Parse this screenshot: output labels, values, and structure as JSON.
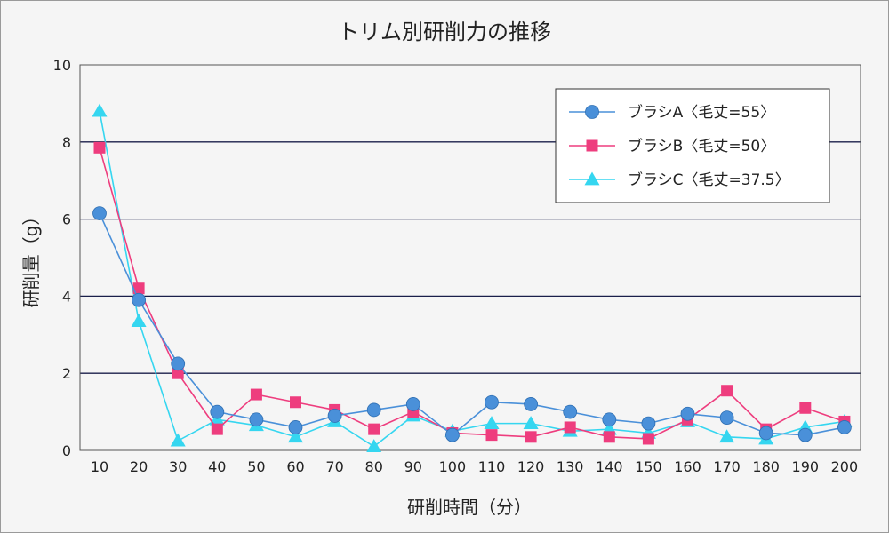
{
  "chart_data": {
    "type": "line",
    "title": "トリム別研削力の推移",
    "xlabel": "研削時間（分）",
    "ylabel": "研削量（g）",
    "ylim": [
      0,
      10
    ],
    "yticks": [
      "0",
      "2",
      "4",
      "6",
      "8",
      "10"
    ],
    "grid": true,
    "legend_position": "top-right",
    "categories": [
      "10",
      "20",
      "30",
      "40",
      "50",
      "60",
      "70",
      "80",
      "90",
      "100",
      "110",
      "120",
      "130",
      "140",
      "150",
      "160",
      "170",
      "180",
      "190",
      "200"
    ],
    "series": [
      {
        "name": "ブラシA〈毛丈=55〉",
        "color": "#4a90d9",
        "marker": "circle",
        "values": [
          6.15,
          3.9,
          2.25,
          1.0,
          0.8,
          0.6,
          0.9,
          1.05,
          1.2,
          0.4,
          1.25,
          1.2,
          1.0,
          0.8,
          0.7,
          0.95,
          0.85,
          0.45,
          0.4,
          0.6
        ]
      },
      {
        "name": "ブラシB〈毛丈=50〉",
        "color": "#ee3d7e",
        "marker": "square",
        "values": [
          7.85,
          4.2,
          2.0,
          0.55,
          1.45,
          1.25,
          1.05,
          0.55,
          1.0,
          0.45,
          0.4,
          0.35,
          0.6,
          0.35,
          0.3,
          0.8,
          1.55,
          0.55,
          1.1,
          0.75
        ]
      },
      {
        "name": "ブラシC〈毛丈=37.5〉",
        "color": "#35d6f0",
        "marker": "triangle",
        "values": [
          8.8,
          3.35,
          0.25,
          0.8,
          0.65,
          0.35,
          0.75,
          0.1,
          0.9,
          0.5,
          0.7,
          0.7,
          0.5,
          0.55,
          0.45,
          0.75,
          0.35,
          0.3,
          0.6,
          0.75
        ]
      }
    ]
  }
}
